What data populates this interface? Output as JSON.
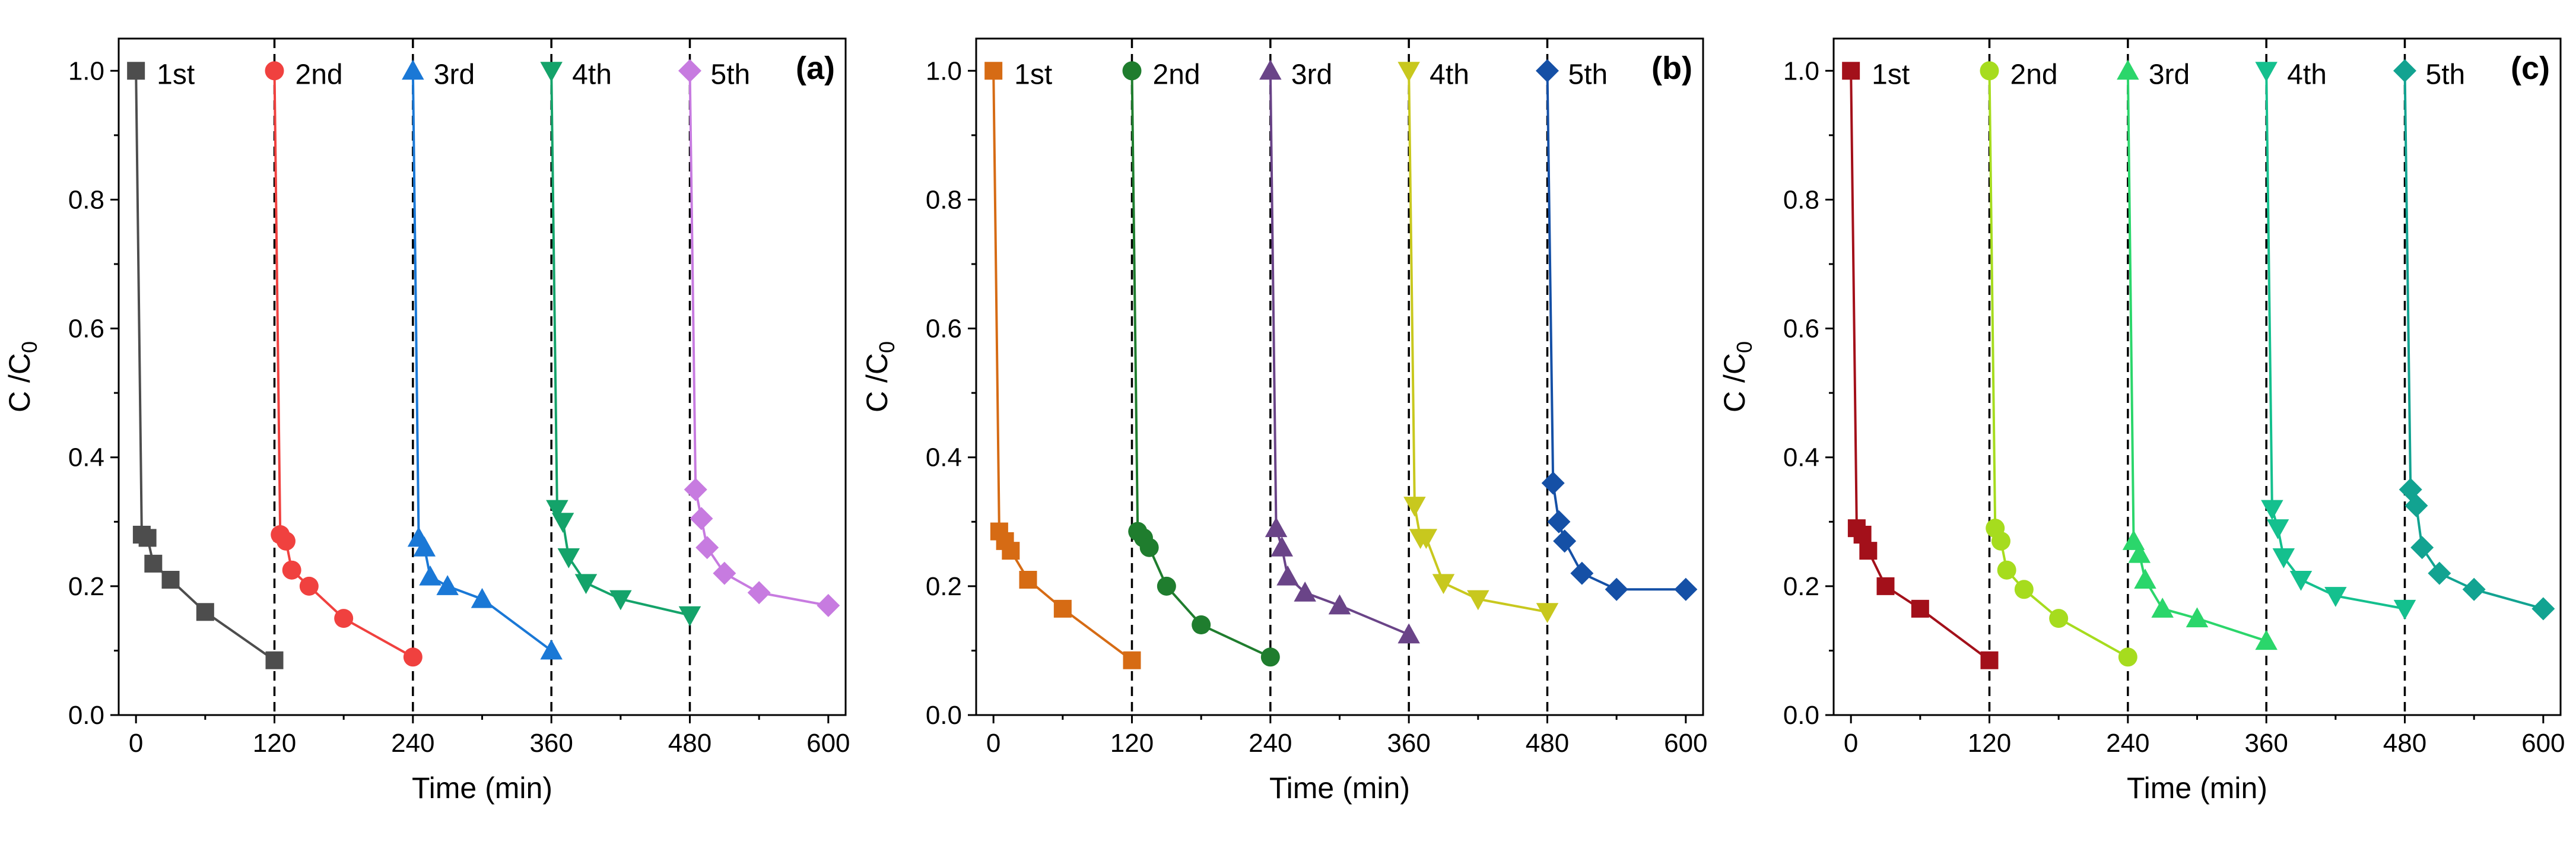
{
  "chart_data": [
    {
      "type": "line",
      "panel_label": "(a)",
      "xlabel": "Time (min)",
      "ylabel": "C /C",
      "ylabel_sub": "0",
      "xlim": [
        -15,
        615
      ],
      "ylim": [
        0,
        1.05
      ],
      "xticks": [
        "0",
        "120",
        "240",
        "360",
        "480",
        "600"
      ],
      "yticks": [
        "0.0",
        "0.2",
        "0.4",
        "0.6",
        "0.8",
        "1.0"
      ],
      "cycle_boundaries": [
        120,
        240,
        360,
        480
      ],
      "series": [
        {
          "name": "1st",
          "color": "#4d4d4d",
          "marker": "square",
          "x": [
            0,
            5,
            10,
            15,
            30,
            60,
            120
          ],
          "y": [
            1.0,
            0.28,
            0.275,
            0.235,
            0.21,
            0.16,
            0.085
          ]
        },
        {
          "name": "2nd",
          "color": "#f0413f",
          "marker": "circle",
          "x": [
            120,
            125,
            130,
            135,
            150,
            180,
            240
          ],
          "y": [
            1.0,
            0.28,
            0.27,
            0.225,
            0.2,
            0.15,
            0.09
          ]
        },
        {
          "name": "3rd",
          "color": "#1a78d6",
          "marker": "triangle-up",
          "x": [
            240,
            245,
            250,
            255,
            270,
            300,
            360
          ],
          "y": [
            1.0,
            0.275,
            0.26,
            0.215,
            0.2,
            0.18,
            0.1
          ]
        },
        {
          "name": "4th",
          "color": "#14a36a",
          "marker": "triangle-down",
          "x": [
            360,
            365,
            370,
            375,
            390,
            420,
            480
          ],
          "y": [
            1.0,
            0.32,
            0.3,
            0.245,
            0.205,
            0.18,
            0.155
          ]
        },
        {
          "name": "5th",
          "color": "#c77be0",
          "marker": "diamond",
          "x": [
            480,
            485,
            490,
            495,
            510,
            540,
            600
          ],
          "y": [
            1.0,
            0.35,
            0.305,
            0.26,
            0.22,
            0.19,
            0.17
          ]
        }
      ]
    },
    {
      "type": "line",
      "panel_label": "(b)",
      "xlabel": "Time (min)",
      "ylabel": "C /C",
      "ylabel_sub": "0",
      "xlim": [
        -15,
        615
      ],
      "ylim": [
        0,
        1.05
      ],
      "xticks": [
        "0",
        "120",
        "240",
        "360",
        "480",
        "600"
      ],
      "yticks": [
        "0.0",
        "0.2",
        "0.4",
        "0.6",
        "0.8",
        "1.0"
      ],
      "cycle_boundaries": [
        120,
        240,
        360,
        480
      ],
      "series": [
        {
          "name": "1st",
          "color": "#d66b14",
          "marker": "square",
          "x": [
            0,
            5,
            10,
            15,
            30,
            60,
            120
          ],
          "y": [
            1.0,
            0.285,
            0.27,
            0.255,
            0.21,
            0.165,
            0.085
          ]
        },
        {
          "name": "2nd",
          "color": "#1f7d2e",
          "marker": "circle",
          "x": [
            120,
            125,
            130,
            135,
            150,
            180,
            240
          ],
          "y": [
            1.0,
            0.285,
            0.275,
            0.26,
            0.2,
            0.14,
            0.09
          ]
        },
        {
          "name": "3rd",
          "color": "#6a4488",
          "marker": "triangle-up",
          "x": [
            240,
            245,
            250,
            255,
            270,
            300,
            360
          ],
          "y": [
            1.0,
            0.29,
            0.26,
            0.215,
            0.19,
            0.17,
            0.125
          ]
        },
        {
          "name": "4th",
          "color": "#c8c81e",
          "marker": "triangle-down",
          "x": [
            360,
            365,
            370,
            375,
            390,
            420,
            480
          ],
          "y": [
            1.0,
            0.325,
            0.275,
            0.275,
            0.205,
            0.18,
            0.16
          ]
        },
        {
          "name": "5th",
          "color": "#1550a6",
          "marker": "diamond",
          "x": [
            480,
            485,
            490,
            495,
            510,
            540,
            600
          ],
          "y": [
            1.0,
            0.36,
            0.3,
            0.27,
            0.22,
            0.195,
            0.195
          ]
        }
      ]
    },
    {
      "type": "line",
      "panel_label": "(c)",
      "xlabel": "Time (min)",
      "ylabel": "C /C",
      "ylabel_sub": "0",
      "xlim": [
        -15,
        615
      ],
      "ylim": [
        0,
        1.05
      ],
      "xticks": [
        "0",
        "120",
        "240",
        "360",
        "480",
        "600"
      ],
      "yticks": [
        "0.0",
        "0.2",
        "0.4",
        "0.6",
        "0.8",
        "1.0"
      ],
      "cycle_boundaries": [
        120,
        240,
        360,
        480
      ],
      "series": [
        {
          "name": "1st",
          "color": "#a3101a",
          "marker": "square",
          "x": [
            0,
            5,
            10,
            15,
            30,
            60,
            120
          ],
          "y": [
            1.0,
            0.29,
            0.28,
            0.255,
            0.2,
            0.165,
            0.085
          ]
        },
        {
          "name": "2nd",
          "color": "#a6dc1e",
          "marker": "circle",
          "x": [
            120,
            125,
            130,
            135,
            150,
            180,
            240
          ],
          "y": [
            1.0,
            0.29,
            0.27,
            0.225,
            0.195,
            0.15,
            0.09
          ]
        },
        {
          "name": "3rd",
          "color": "#2bd66b",
          "marker": "triangle-up",
          "x": [
            240,
            245,
            250,
            255,
            270,
            300,
            360
          ],
          "y": [
            1.0,
            0.27,
            0.25,
            0.21,
            0.165,
            0.15,
            0.115
          ]
        },
        {
          "name": "4th",
          "color": "#14c08e",
          "marker": "triangle-down",
          "x": [
            360,
            365,
            370,
            375,
            390,
            420,
            480
          ],
          "y": [
            1.0,
            0.32,
            0.29,
            0.245,
            0.21,
            0.185,
            0.165
          ]
        },
        {
          "name": "5th",
          "color": "#12a391",
          "marker": "diamond",
          "x": [
            480,
            485,
            490,
            495,
            510,
            540,
            600
          ],
          "y": [
            1.0,
            0.35,
            0.325,
            0.26,
            0.22,
            0.195,
            0.165
          ]
        }
      ]
    }
  ]
}
